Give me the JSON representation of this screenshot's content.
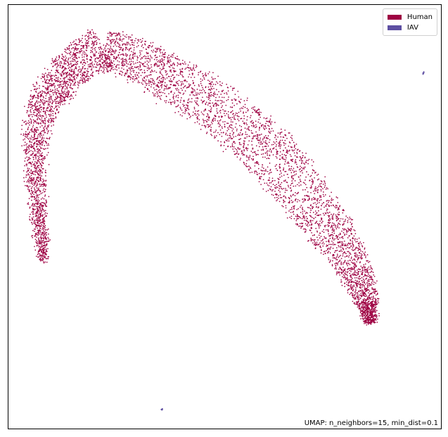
{
  "chart_data": {
    "type": "scatter",
    "title": "",
    "xlabel": "",
    "ylabel": "",
    "grid": false,
    "legend_position": "top-right",
    "annotation": "UMAP: n_neighbors=15, min_dist=0.1",
    "series": [
      {
        "name": "Human",
        "color": "#9e0142",
        "point_count": 15000,
        "shape": "arc band (horseshoe) from upper-left sweeping to lower-right"
      },
      {
        "name": "IAV",
        "color": "#5e4fa2",
        "point_count": 14,
        "clusters": [
          "small cluster near top-right corner",
          "small cluster near bottom center"
        ]
      }
    ]
  }
}
